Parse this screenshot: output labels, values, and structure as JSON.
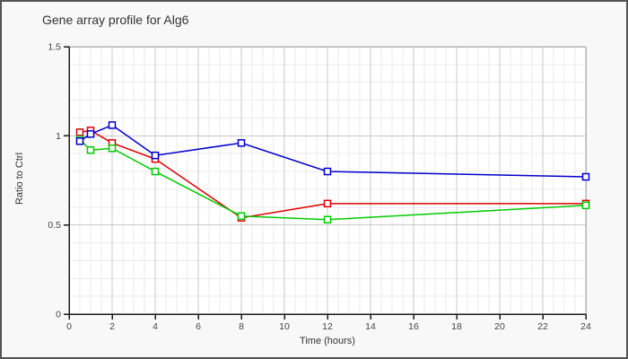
{
  "window": {
    "background": "#f8f8f8",
    "border_color": "#545454"
  },
  "header": {
    "title": "Gene array profile for Alg6"
  },
  "chart_data": {
    "type": "line",
    "title": "Gene array profile for Alg6",
    "xlabel": "Time (hours)",
    "ylabel": "Ratio to Ctrl",
    "xlim": [
      0,
      24
    ],
    "ylim": [
      0,
      1.5
    ],
    "x_ticks": [
      0,
      2,
      4,
      6,
      8,
      10,
      12,
      14,
      16,
      18,
      20,
      22,
      24
    ],
    "x_tick_labels": [
      "0",
      "2",
      "4",
      "6",
      "8",
      "10",
      "12",
      "14",
      "16",
      "18",
      "20",
      "22",
      "24"
    ],
    "y_ticks": [
      0,
      0.5,
      1,
      1.5
    ],
    "y_tick_labels": [
      "0",
      "0.5",
      "1",
      "1.5"
    ],
    "x_minor_step": 0.5,
    "y_minor_step": 0.1,
    "grid": true,
    "legend": false,
    "marker": "open-square",
    "x": [
      0.5,
      1,
      2,
      4,
      8,
      12,
      24
    ],
    "series": [
      {
        "name": "red-series",
        "color": "#dd0000",
        "values": [
          1.02,
          1.03,
          0.96,
          0.87,
          0.54,
          0.62,
          0.62
        ]
      },
      {
        "name": "green-series",
        "color": "#00cc00",
        "values": [
          0.98,
          0.92,
          0.93,
          0.8,
          0.55,
          0.53,
          0.61
        ]
      },
      {
        "name": "blue-series",
        "color": "#0000cc",
        "values": [
          0.97,
          1.01,
          1.06,
          0.89,
          0.96,
          0.8,
          0.77
        ]
      }
    ],
    "colors": {
      "axis": "#1a1a1a",
      "tick_label": "#444444",
      "grid_major": "#c9c9c9",
      "grid_minor": "#ebebeb",
      "plot_bg": "#ffffff",
      "plot_border": "#b4b4b4",
      "marker_fill": "#ffffff"
    }
  }
}
